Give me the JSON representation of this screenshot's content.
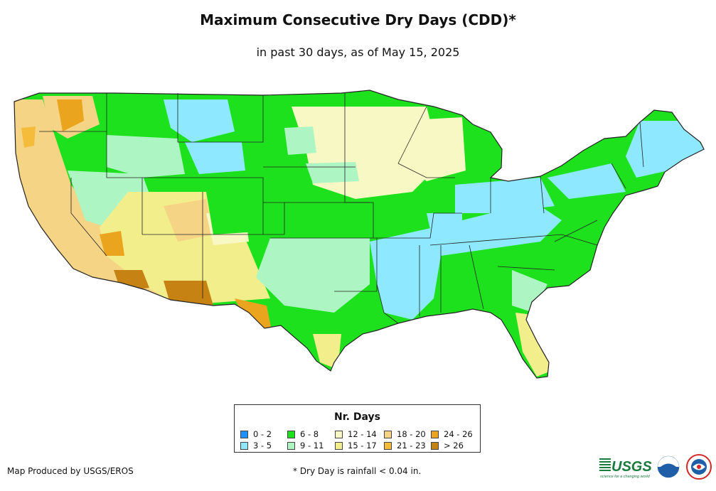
{
  "title": "Maximum Consecutive Dry Days (CDD)*",
  "subtitle": "in past 30 days, as of May 15, 2025",
  "legend": {
    "title": "Nr. Days",
    "items": [
      {
        "label": "0 - 2",
        "color": "#1e90ff"
      },
      {
        "label": "3 - 5",
        "color": "#8ee8ff"
      },
      {
        "label": "6 - 8",
        "color": "#1ee11e"
      },
      {
        "label": "9 - 11",
        "color": "#aef5c4"
      },
      {
        "label": "12 - 14",
        "color": "#f8f8c4"
      },
      {
        "label": "15 - 17",
        "color": "#f3ee8c"
      },
      {
        "label": "18 - 20",
        "color": "#f5d486"
      },
      {
        "label": "21 - 23",
        "color": "#f5bc3c"
      },
      {
        "label": "24 - 26",
        "color": "#eba41e"
      },
      {
        "label": "> 26",
        "color": "#c68212"
      }
    ]
  },
  "credit": "Map Produced by USGS/EROS",
  "footnote": "* Dry Day is rainfall < 0.04 in.",
  "logos": {
    "usgs": {
      "text": "USGS",
      "tagline": "science for a changing world"
    },
    "noaa": {
      "text": "NOAA"
    },
    "nws": {
      "text": "NWS"
    }
  },
  "map": {
    "background_color": "#ffffff",
    "boundary_color": "#222222",
    "region": "Contiguous United States"
  }
}
